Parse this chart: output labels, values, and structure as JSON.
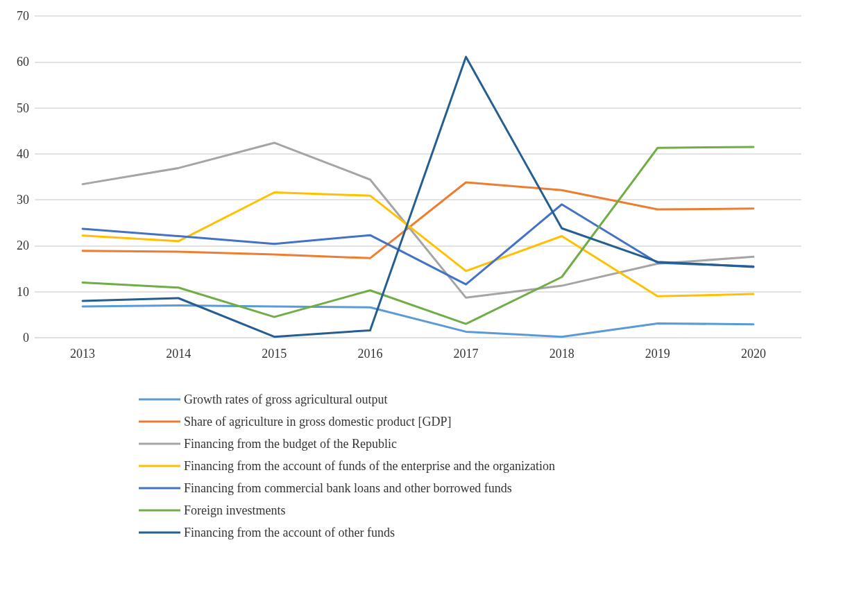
{
  "chart_data": {
    "type": "line",
    "categories": [
      "2013",
      "2014",
      "2015",
      "2016",
      "2017",
      "2018",
      "2019",
      "2020"
    ],
    "ylim": [
      0,
      70
    ],
    "yticks": [
      0,
      10,
      20,
      30,
      40,
      50,
      60,
      70
    ],
    "grid": "y",
    "legend": "bottom",
    "marker": "none",
    "line_style": "solid",
    "series": [
      {
        "name": "Growth rates of gross agricultural output",
        "color": "#5b9bd5",
        "values": [
          6.8,
          7.0,
          6.8,
          6.6,
          1.3,
          0.2,
          3.1,
          2.9
        ]
      },
      {
        "name": "Share of agriculture in gross domestic product [GDP]",
        "color": "#ed7d31",
        "values": [
          18.9,
          18.7,
          18.1,
          17.3,
          33.8,
          32.1,
          27.9,
          28.1
        ]
      },
      {
        "name": "Financing from the budget of the Republic",
        "color": "#a5a5a5",
        "values": [
          33.4,
          36.9,
          42.4,
          34.4,
          8.7,
          11.3,
          16.1,
          17.6
        ]
      },
      {
        "name": "Financing from the account of funds of the enterprise and the organization",
        "color": "#ffc000",
        "values": [
          22.2,
          21.0,
          31.6,
          30.9,
          14.5,
          22.1,
          9.0,
          9.5
        ]
      },
      {
        "name": "Financing from commercial bank loans and other borrowed funds",
        "color": "#4472c4",
        "values": [
          23.7,
          22.1,
          20.4,
          22.3,
          11.6,
          29.0,
          16.3,
          15.5
        ]
      },
      {
        "name": "Foreign investments",
        "color": "#70ad47",
        "values": [
          12.0,
          10.9,
          4.5,
          10.3,
          3.0,
          13.2,
          41.3,
          41.5
        ]
      },
      {
        "name": "Financing from the account of other funds",
        "color": "#255e91",
        "values": [
          8.0,
          8.6,
          0.2,
          1.6,
          61.1,
          23.8,
          16.5,
          15.4
        ]
      }
    ]
  }
}
